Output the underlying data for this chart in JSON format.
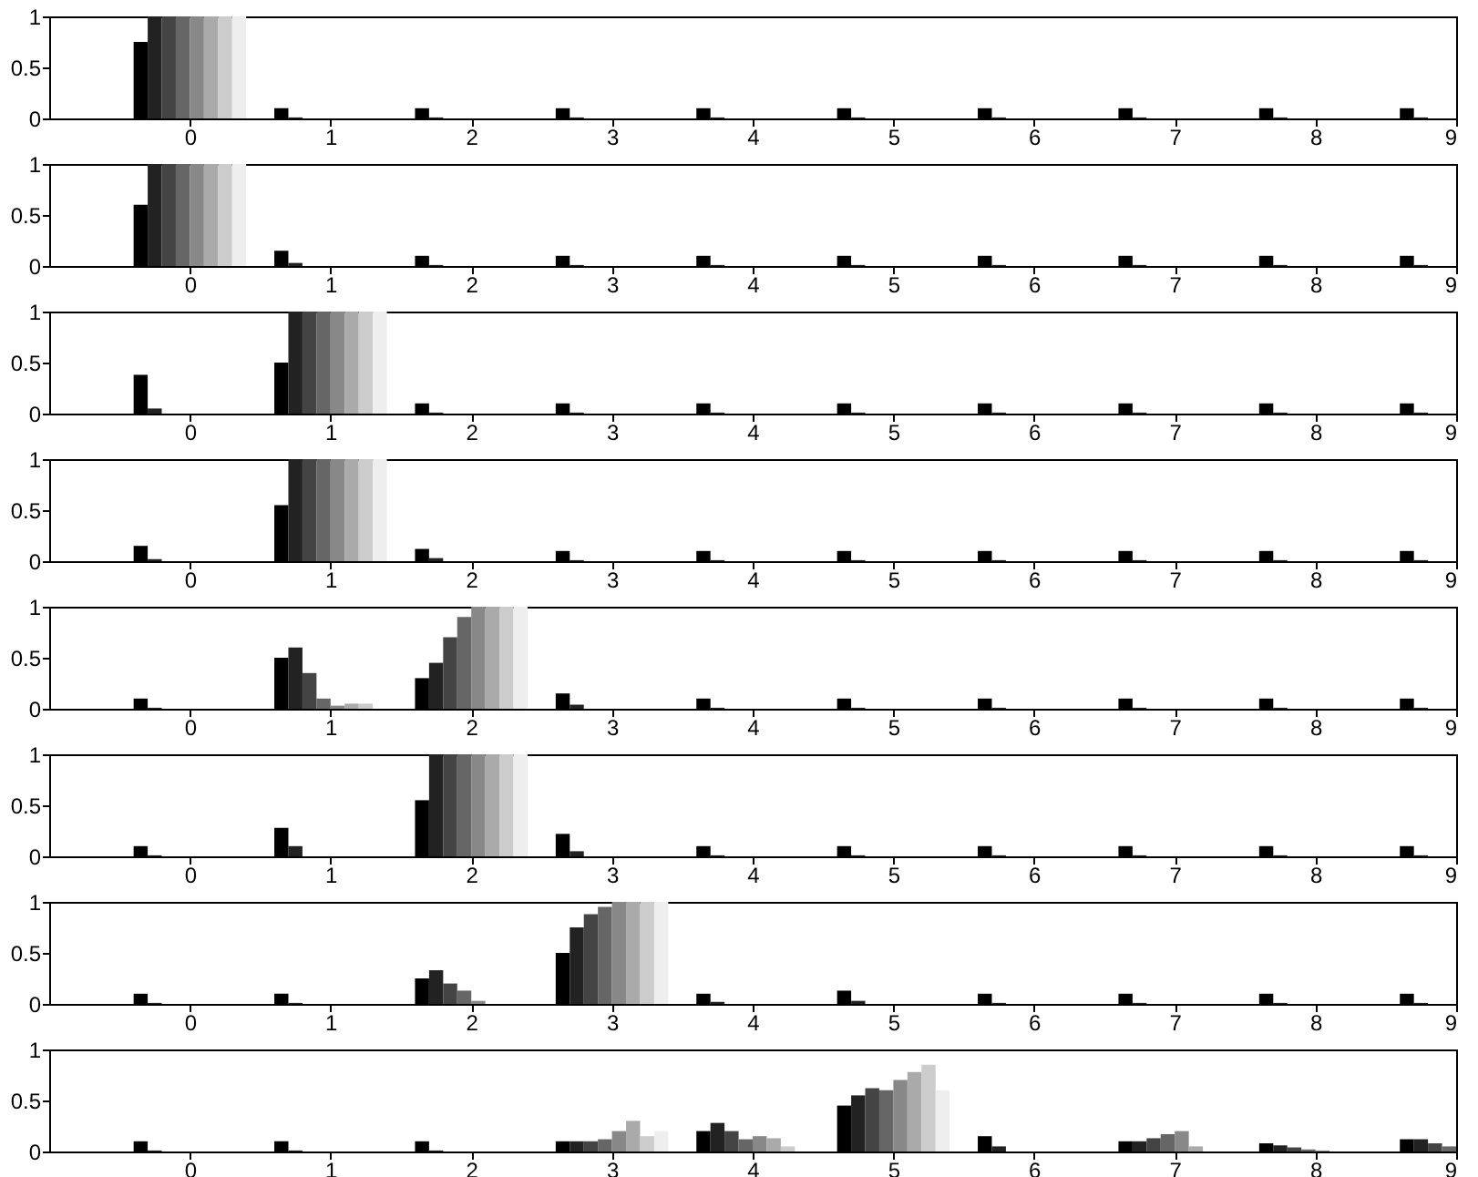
{
  "chart_data": [
    {
      "type": "bar",
      "xlim": [
        -1,
        9
      ],
      "xticks": [
        0,
        1,
        2,
        3,
        4,
        5,
        6,
        7,
        8,
        9
      ],
      "ylim": [
        0,
        1
      ],
      "yticks": [
        0,
        0.5,
        1
      ],
      "series": [
        {
          "color": "#000000",
          "x": [
            -0.35,
            0.65,
            1.65,
            2.65,
            3.65,
            4.65,
            5.65,
            6.65,
            7.65,
            8.65
          ],
          "values": [
            0.75,
            0.1,
            0.1,
            0.1,
            0.1,
            0.1,
            0.1,
            0.1,
            0.1,
            0.1
          ]
        },
        {
          "color": "#222222",
          "x": [
            -0.25,
            0.75,
            1.75,
            2.75,
            3.75,
            4.75,
            5.75,
            6.75,
            7.75,
            8.75
          ],
          "values": [
            1,
            0.01,
            0.01,
            0.01,
            0.01,
            0.01,
            0.01,
            0.01,
            0.01,
            0.01
          ]
        },
        {
          "color": "#444444",
          "x": [
            -0.15,
            0.85,
            1.85,
            2.85,
            3.85,
            4.85,
            5.85,
            6.85,
            7.85,
            8.85
          ],
          "values": [
            1,
            0,
            0,
            0,
            0,
            0,
            0,
            0,
            0,
            0
          ]
        },
        {
          "color": "#666666",
          "x": [
            -0.05,
            0.95,
            1.95,
            2.95,
            3.95,
            4.95,
            5.95,
            6.95,
            7.95,
            8.95
          ],
          "values": [
            1,
            0,
            0,
            0,
            0,
            0,
            0,
            0,
            0,
            0
          ]
        },
        {
          "color": "#888888",
          "x": [
            0.05,
            1.05,
            2.05,
            3.05,
            4.05,
            5.05,
            6.05,
            7.05,
            8.05
          ],
          "values": [
            1,
            0,
            0,
            0,
            0,
            0,
            0,
            0,
            0
          ]
        },
        {
          "color": "#aaaaaa",
          "x": [
            0.15,
            1.15,
            2.15,
            3.15,
            4.15,
            5.15,
            6.15,
            7.15,
            8.15
          ],
          "values": [
            1,
            0,
            0,
            0,
            0,
            0,
            0,
            0,
            0
          ]
        },
        {
          "color": "#cccccc",
          "x": [
            0.25,
            1.25,
            2.25,
            3.25,
            4.25,
            5.25,
            6.25,
            7.25,
            8.25
          ],
          "values": [
            1,
            0,
            0,
            0,
            0,
            0,
            0,
            0,
            0
          ]
        },
        {
          "color": "#eeeeee",
          "x": [
            0.35,
            1.35,
            2.35,
            3.35,
            4.35,
            5.35,
            6.35,
            7.35,
            8.35
          ],
          "values": [
            1,
            0,
            0,
            0,
            0,
            0,
            0,
            0,
            0
          ]
        }
      ]
    },
    {
      "type": "bar",
      "xlim": [
        -1,
        9
      ],
      "xticks": [
        0,
        1,
        2,
        3,
        4,
        5,
        6,
        7,
        8,
        9
      ],
      "ylim": [
        0,
        1
      ],
      "yticks": [
        0,
        0.5,
        1
      ],
      "series": [
        {
          "color": "#000000",
          "x": [
            -0.35,
            0.65,
            1.65,
            2.65,
            3.65,
            4.65,
            5.65,
            6.65,
            7.65,
            8.65
          ],
          "values": [
            0.6,
            0.15,
            0.1,
            0.1,
            0.1,
            0.1,
            0.1,
            0.1,
            0.1,
            0.1
          ]
        },
        {
          "color": "#222222",
          "x": [
            -0.25,
            0.75,
            1.75,
            2.75,
            3.75,
            4.75,
            5.75,
            6.75,
            7.75,
            8.75
          ],
          "values": [
            1,
            0.03,
            0.01,
            0.01,
            0.01,
            0.01,
            0.01,
            0.01,
            0.01,
            0.01
          ]
        },
        {
          "color": "#444444",
          "x": [
            -0.15,
            0.85,
            1.85,
            2.85,
            3.85,
            4.85,
            5.85,
            6.85,
            7.85,
            8.85
          ],
          "values": [
            1,
            0,
            0,
            0,
            0,
            0,
            0,
            0,
            0,
            0
          ]
        },
        {
          "color": "#666666",
          "x": [
            -0.05,
            0.95,
            1.95,
            2.95,
            3.95,
            4.95,
            5.95,
            6.95,
            7.95,
            8.95
          ],
          "values": [
            1,
            0,
            0,
            0,
            0,
            0,
            0,
            0,
            0,
            0
          ]
        },
        {
          "color": "#888888",
          "x": [
            0.05,
            1.05,
            2.05,
            3.05,
            4.05,
            5.05,
            6.05,
            7.05,
            8.05
          ],
          "values": [
            1,
            0,
            0,
            0,
            0,
            0,
            0,
            0,
            0
          ]
        },
        {
          "color": "#aaaaaa",
          "x": [
            0.15,
            1.15,
            2.15,
            3.15,
            4.15,
            5.15,
            6.15,
            7.15,
            8.15
          ],
          "values": [
            1,
            0,
            0,
            0,
            0,
            0,
            0,
            0,
            0
          ]
        },
        {
          "color": "#cccccc",
          "x": [
            0.25,
            1.25,
            2.25,
            3.25,
            4.25,
            5.25,
            6.25,
            7.25,
            8.25
          ],
          "values": [
            1,
            0,
            0,
            0,
            0,
            0,
            0,
            0,
            0
          ]
        },
        {
          "color": "#eeeeee",
          "x": [
            0.35,
            1.35,
            2.35,
            3.35,
            4.35,
            5.35,
            6.35,
            7.35,
            8.35
          ],
          "values": [
            1,
            0,
            0,
            0,
            0,
            0,
            0,
            0,
            0
          ]
        }
      ]
    },
    {
      "type": "bar",
      "xlim": [
        -1,
        9
      ],
      "xticks": [
        0,
        1,
        2,
        3,
        4,
        5,
        6,
        7,
        8,
        9
      ],
      "ylim": [
        0,
        1
      ],
      "yticks": [
        0,
        0.5,
        1
      ],
      "series": [
        {
          "color": "#000000",
          "x": [
            -0.35,
            0.65,
            1.65,
            2.65,
            3.65,
            4.65,
            5.65,
            6.65,
            7.65,
            8.65
          ],
          "values": [
            0.38,
            0.5,
            0.1,
            0.1,
            0.1,
            0.1,
            0.1,
            0.1,
            0.1,
            0.1
          ]
        },
        {
          "color": "#222222",
          "x": [
            -0.25,
            0.75,
            1.75,
            2.75,
            3.75,
            4.75,
            5.75,
            6.75,
            7.75,
            8.75
          ],
          "values": [
            0.05,
            1,
            0.01,
            0.01,
            0.01,
            0.01,
            0.01,
            0.01,
            0.01,
            0.01
          ]
        },
        {
          "color": "#444444",
          "x": [
            -0.15,
            0.85,
            1.85,
            2.85,
            3.85,
            4.85,
            5.85,
            6.85,
            7.85,
            8.85
          ],
          "values": [
            0,
            1,
            0,
            0,
            0,
            0,
            0,
            0,
            0,
            0
          ]
        },
        {
          "color": "#666666",
          "x": [
            -0.05,
            0.95,
            1.95,
            2.95,
            3.95,
            4.95,
            5.95,
            6.95,
            7.95,
            8.95
          ],
          "values": [
            0,
            1,
            0,
            0,
            0,
            0,
            0,
            0,
            0,
            0
          ]
        },
        {
          "color": "#888888",
          "x": [
            0.05,
            1.05,
            2.05,
            3.05,
            4.05,
            5.05,
            6.05,
            7.05,
            8.05
          ],
          "values": [
            0,
            1,
            0,
            0,
            0,
            0,
            0,
            0,
            0
          ]
        },
        {
          "color": "#aaaaaa",
          "x": [
            0.15,
            1.15,
            2.15,
            3.15,
            4.15,
            5.15,
            6.15,
            7.15,
            8.15
          ],
          "values": [
            0,
            1,
            0,
            0,
            0,
            0,
            0,
            0,
            0
          ]
        },
        {
          "color": "#cccccc",
          "x": [
            0.25,
            1.25,
            2.25,
            3.25,
            4.25,
            5.25,
            6.25,
            7.25,
            8.25
          ],
          "values": [
            0,
            1,
            0,
            0,
            0,
            0,
            0,
            0,
            0
          ]
        },
        {
          "color": "#eeeeee",
          "x": [
            0.35,
            1.35,
            2.35,
            3.35,
            4.35,
            5.35,
            6.35,
            7.35,
            8.35
          ],
          "values": [
            0,
            1,
            0,
            0,
            0,
            0,
            0,
            0,
            0
          ]
        }
      ]
    },
    {
      "type": "bar",
      "xlim": [
        -1,
        9
      ],
      "xticks": [
        0,
        1,
        2,
        3,
        4,
        5,
        6,
        7,
        8,
        9
      ],
      "ylim": [
        0,
        1
      ],
      "yticks": [
        0,
        0.5,
        1
      ],
      "series": [
        {
          "color": "#000000",
          "x": [
            -0.35,
            0.65,
            1.65,
            2.65,
            3.65,
            4.65,
            5.65,
            6.65,
            7.65,
            8.65
          ],
          "values": [
            0.15,
            0.55,
            0.12,
            0.1,
            0.1,
            0.1,
            0.1,
            0.1,
            0.1,
            0.1
          ]
        },
        {
          "color": "#222222",
          "x": [
            -0.25,
            0.75,
            1.75,
            2.75,
            3.75,
            4.75,
            5.75,
            6.75,
            7.75,
            8.75
          ],
          "values": [
            0.02,
            1,
            0.03,
            0.01,
            0.01,
            0.01,
            0.01,
            0.01,
            0.01,
            0.01
          ]
        },
        {
          "color": "#444444",
          "x": [
            -0.15,
            0.85,
            1.85,
            2.85,
            3.85,
            4.85,
            5.85,
            6.85,
            7.85,
            8.85
          ],
          "values": [
            0,
            1,
            0,
            0,
            0,
            0,
            0,
            0,
            0,
            0
          ]
        },
        {
          "color": "#666666",
          "x": [
            -0.05,
            0.95,
            1.95,
            2.95,
            3.95,
            4.95,
            5.95,
            6.95,
            7.95,
            8.95
          ],
          "values": [
            0,
            1,
            0,
            0,
            0,
            0,
            0,
            0,
            0,
            0
          ]
        },
        {
          "color": "#888888",
          "x": [
            0.05,
            1.05,
            2.05,
            3.05,
            4.05,
            5.05,
            6.05,
            7.05,
            8.05
          ],
          "values": [
            0,
            1,
            0,
            0,
            0,
            0,
            0,
            0,
            0
          ]
        },
        {
          "color": "#aaaaaa",
          "x": [
            0.15,
            1.15,
            2.15,
            3.15,
            4.15,
            5.15,
            6.15,
            7.15,
            8.15
          ],
          "values": [
            0,
            1,
            0,
            0,
            0,
            0,
            0,
            0,
            0
          ]
        },
        {
          "color": "#cccccc",
          "x": [
            0.25,
            1.25,
            2.25,
            3.25,
            4.25,
            5.25,
            6.25,
            7.25,
            8.25
          ],
          "values": [
            0,
            1,
            0,
            0,
            0,
            0,
            0,
            0,
            0
          ]
        },
        {
          "color": "#eeeeee",
          "x": [
            0.35,
            1.35,
            2.35,
            3.35,
            4.35,
            5.35,
            6.35,
            7.35,
            8.35
          ],
          "values": [
            0,
            1,
            0,
            0,
            0,
            0,
            0,
            0,
            0
          ]
        }
      ]
    },
    {
      "type": "bar",
      "xlim": [
        -1,
        9
      ],
      "xticks": [
        0,
        1,
        2,
        3,
        4,
        5,
        6,
        7,
        8,
        9
      ],
      "ylim": [
        0,
        1
      ],
      "yticks": [
        0,
        0.5,
        1
      ],
      "series": [
        {
          "color": "#000000",
          "x": [
            -0.35,
            0.65,
            1.65,
            2.65,
            3.65,
            4.65,
            5.65,
            6.65,
            7.65,
            8.65
          ],
          "values": [
            0.1,
            0.5,
            0.3,
            0.15,
            0.1,
            0.1,
            0.1,
            0.1,
            0.1,
            0.1
          ]
        },
        {
          "color": "#222222",
          "x": [
            -0.25,
            0.75,
            1.75,
            2.75,
            3.75,
            4.75,
            5.75,
            6.75,
            7.75,
            8.75
          ],
          "values": [
            0.01,
            0.6,
            0.45,
            0.04,
            0.01,
            0.01,
            0.01,
            0.01,
            0.01,
            0.01
          ]
        },
        {
          "color": "#444444",
          "x": [
            -0.15,
            0.85,
            1.85,
            2.85,
            3.85,
            4.85,
            5.85,
            6.85,
            7.85,
            8.85
          ],
          "values": [
            0,
            0.35,
            0.7,
            0,
            0,
            0,
            0,
            0,
            0,
            0
          ]
        },
        {
          "color": "#666666",
          "x": [
            -0.05,
            0.95,
            1.95,
            2.95,
            3.95,
            4.95,
            5.95,
            6.95,
            7.95,
            8.95
          ],
          "values": [
            0,
            0.1,
            0.9,
            0,
            0,
            0,
            0,
            0,
            0,
            0
          ]
        },
        {
          "color": "#888888",
          "x": [
            0.05,
            1.05,
            2.05,
            3.05,
            4.05,
            5.05,
            6.05,
            7.05,
            8.05
          ],
          "values": [
            0,
            0.03,
            1,
            0,
            0,
            0,
            0,
            0,
            0
          ]
        },
        {
          "color": "#aaaaaa",
          "x": [
            0.15,
            1.15,
            2.15,
            3.15,
            4.15,
            5.15,
            6.15,
            7.15,
            8.15
          ],
          "values": [
            0,
            0.05,
            1,
            0,
            0,
            0,
            0,
            0,
            0
          ]
        },
        {
          "color": "#cccccc",
          "x": [
            0.25,
            1.25,
            2.25,
            3.25,
            4.25,
            5.25,
            6.25,
            7.25,
            8.25
          ],
          "values": [
            0,
            0.05,
            1,
            0,
            0,
            0,
            0,
            0,
            0
          ]
        },
        {
          "color": "#eeeeee",
          "x": [
            0.35,
            1.35,
            2.35,
            3.35,
            4.35,
            5.35,
            6.35,
            7.35,
            8.35
          ],
          "values": [
            0,
            0,
            1,
            0,
            0,
            0,
            0,
            0,
            0
          ]
        }
      ]
    },
    {
      "type": "bar",
      "xlim": [
        -1,
        9
      ],
      "xticks": [
        0,
        1,
        2,
        3,
        4,
        5,
        6,
        7,
        8,
        9
      ],
      "ylim": [
        0,
        1
      ],
      "yticks": [
        0,
        0.5,
        1
      ],
      "series": [
        {
          "color": "#000000",
          "x": [
            -0.35,
            0.65,
            1.65,
            2.65,
            3.65,
            4.65,
            5.65,
            6.65,
            7.65,
            8.65
          ],
          "values": [
            0.1,
            0.28,
            0.55,
            0.22,
            0.1,
            0.1,
            0.1,
            0.1,
            0.1,
            0.1
          ]
        },
        {
          "color": "#222222",
          "x": [
            -0.25,
            0.75,
            1.75,
            2.75,
            3.75,
            4.75,
            5.75,
            6.75,
            7.75,
            8.75
          ],
          "values": [
            0.01,
            0.1,
            1,
            0.05,
            0.01,
            0.01,
            0.01,
            0.01,
            0.01,
            0.01
          ]
        },
        {
          "color": "#444444",
          "x": [
            -0.15,
            0.85,
            1.85,
            2.85,
            3.85,
            4.85,
            5.85,
            6.85,
            7.85,
            8.85
          ],
          "values": [
            0,
            0,
            1,
            0,
            0,
            0,
            0,
            0,
            0,
            0
          ]
        },
        {
          "color": "#666666",
          "x": [
            -0.05,
            0.95,
            1.95,
            2.95,
            3.95,
            4.95,
            5.95,
            6.95,
            7.95,
            8.95
          ],
          "values": [
            0,
            0,
            1,
            0,
            0,
            0,
            0,
            0,
            0,
            0
          ]
        },
        {
          "color": "#888888",
          "x": [
            0.05,
            1.05,
            2.05,
            3.05,
            4.05,
            5.05,
            6.05,
            7.05,
            8.05
          ],
          "values": [
            0,
            0,
            1,
            0,
            0,
            0,
            0,
            0,
            0
          ]
        },
        {
          "color": "#aaaaaa",
          "x": [
            0.15,
            1.15,
            2.15,
            3.15,
            4.15,
            5.15,
            6.15,
            7.15,
            8.15
          ],
          "values": [
            0,
            0,
            1,
            0,
            0,
            0,
            0,
            0,
            0
          ]
        },
        {
          "color": "#cccccc",
          "x": [
            0.25,
            1.25,
            2.25,
            3.25,
            4.25,
            5.25,
            6.25,
            7.25,
            8.25
          ],
          "values": [
            0,
            0,
            1,
            0,
            0,
            0,
            0,
            0,
            0
          ]
        },
        {
          "color": "#eeeeee",
          "x": [
            0.35,
            1.35,
            2.35,
            3.35,
            4.35,
            5.35,
            6.35,
            7.35,
            8.35
          ],
          "values": [
            0,
            0,
            1,
            0,
            0,
            0,
            0,
            0,
            0
          ]
        }
      ]
    },
    {
      "type": "bar",
      "xlim": [
        -1,
        9
      ],
      "xticks": [
        0,
        1,
        2,
        3,
        4,
        5,
        6,
        7,
        8,
        9
      ],
      "ylim": [
        0,
        1
      ],
      "yticks": [
        0,
        0.5,
        1
      ],
      "series": [
        {
          "color": "#000000",
          "x": [
            -0.35,
            0.65,
            1.65,
            2.65,
            3.65,
            4.65,
            5.65,
            6.65,
            7.65,
            8.65
          ],
          "values": [
            0.1,
            0.1,
            0.25,
            0.5,
            0.1,
            0.13,
            0.1,
            0.1,
            0.1,
            0.1
          ]
        },
        {
          "color": "#222222",
          "x": [
            -0.25,
            0.75,
            1.75,
            2.75,
            3.75,
            4.75,
            5.75,
            6.75,
            7.75,
            8.75
          ],
          "values": [
            0.01,
            0.01,
            0.33,
            0.75,
            0.02,
            0.03,
            0.01,
            0.01,
            0.01,
            0.01
          ]
        },
        {
          "color": "#444444",
          "x": [
            -0.15,
            0.85,
            1.85,
            2.85,
            3.85,
            4.85,
            5.85,
            6.85,
            7.85,
            8.85
          ],
          "values": [
            0,
            0,
            0.2,
            0.88,
            0,
            0,
            0,
            0,
            0,
            0
          ]
        },
        {
          "color": "#666666",
          "x": [
            -0.05,
            0.95,
            1.95,
            2.95,
            3.95,
            4.95,
            5.95,
            6.95,
            7.95,
            8.95
          ],
          "values": [
            0,
            0,
            0.13,
            0.95,
            0,
            0,
            0,
            0,
            0,
            0
          ]
        },
        {
          "color": "#888888",
          "x": [
            0.05,
            1.05,
            2.05,
            3.05,
            4.05,
            5.05,
            6.05,
            7.05,
            8.05
          ],
          "values": [
            0,
            0,
            0.03,
            1,
            0,
            0,
            0,
            0,
            0
          ]
        },
        {
          "color": "#aaaaaa",
          "x": [
            0.15,
            1.15,
            2.15,
            3.15,
            4.15,
            5.15,
            6.15,
            7.15,
            8.15
          ],
          "values": [
            0,
            0,
            0,
            1,
            0,
            0,
            0,
            0,
            0
          ]
        },
        {
          "color": "#cccccc",
          "x": [
            0.25,
            1.25,
            2.25,
            3.25,
            4.25,
            5.25,
            6.25,
            7.25,
            8.25
          ],
          "values": [
            0,
            0,
            0,
            1,
            0,
            0,
            0,
            0,
            0
          ]
        },
        {
          "color": "#eeeeee",
          "x": [
            0.35,
            1.35,
            2.35,
            3.35,
            4.35,
            5.35,
            6.35,
            7.35,
            8.35
          ],
          "values": [
            0,
            0,
            0,
            1,
            0,
            0,
            0,
            0,
            0
          ]
        }
      ]
    },
    {
      "type": "bar",
      "xlim": [
        -1,
        9
      ],
      "xticks": [
        0,
        1,
        2,
        3,
        4,
        5,
        6,
        7,
        8,
        9
      ],
      "ylim": [
        0,
        1
      ],
      "yticks": [
        0,
        0.5,
        1
      ],
      "series": [
        {
          "color": "#000000",
          "x": [
            -0.35,
            0.65,
            1.65,
            2.65,
            3.65,
            4.65,
            5.65,
            6.65,
            7.65,
            8.65
          ],
          "values": [
            0.1,
            0.1,
            0.1,
            0.1,
            0.2,
            0.45,
            0.15,
            0.1,
            0.08,
            0.12
          ]
        },
        {
          "color": "#222222",
          "x": [
            -0.25,
            0.75,
            1.75,
            2.75,
            3.75,
            4.75,
            5.75,
            6.75,
            7.75,
            8.75
          ],
          "values": [
            0.01,
            0.01,
            0.01,
            0.1,
            0.28,
            0.55,
            0.05,
            0.1,
            0.06,
            0.12
          ]
        },
        {
          "color": "#444444",
          "x": [
            -0.15,
            0.85,
            1.85,
            2.85,
            3.85,
            4.85,
            5.85,
            6.85,
            7.85,
            8.85
          ],
          "values": [
            0,
            0,
            0,
            0.1,
            0.2,
            0.62,
            0,
            0.13,
            0.04,
            0.08
          ]
        },
        {
          "color": "#666666",
          "x": [
            -0.05,
            0.95,
            1.95,
            2.95,
            3.95,
            4.95,
            5.95,
            6.95,
            7.95,
            8.95
          ],
          "values": [
            0,
            0,
            0,
            0.12,
            0.12,
            0.6,
            0,
            0.17,
            0.02,
            0.05
          ]
        },
        {
          "color": "#888888",
          "x": [
            0.05,
            1.05,
            2.05,
            3.05,
            4.05,
            5.05,
            6.05,
            7.05,
            8.05
          ],
          "values": [
            0,
            0,
            0,
            0.2,
            0.15,
            0.7,
            0,
            0.2,
            0.01
          ]
        },
        {
          "color": "#aaaaaa",
          "x": [
            0.15,
            1.15,
            2.15,
            3.15,
            4.15,
            5.15,
            6.15,
            7.15,
            8.15
          ],
          "values": [
            0,
            0,
            0,
            0.3,
            0.13,
            0.78,
            0,
            0.05,
            0
          ]
        },
        {
          "color": "#cccccc",
          "x": [
            0.25,
            1.25,
            2.25,
            3.25,
            4.25,
            5.25,
            6.25,
            7.25,
            8.25
          ],
          "values": [
            0,
            0,
            0,
            0.15,
            0.05,
            0.85,
            0,
            0,
            0
          ]
        },
        {
          "color": "#eeeeee",
          "x": [
            0.35,
            1.35,
            2.35,
            3.35,
            4.35,
            5.35,
            6.35,
            7.35,
            8.35
          ],
          "values": [
            0,
            0,
            0,
            0.2,
            0,
            0.6,
            0,
            0,
            0
          ]
        }
      ]
    }
  ]
}
